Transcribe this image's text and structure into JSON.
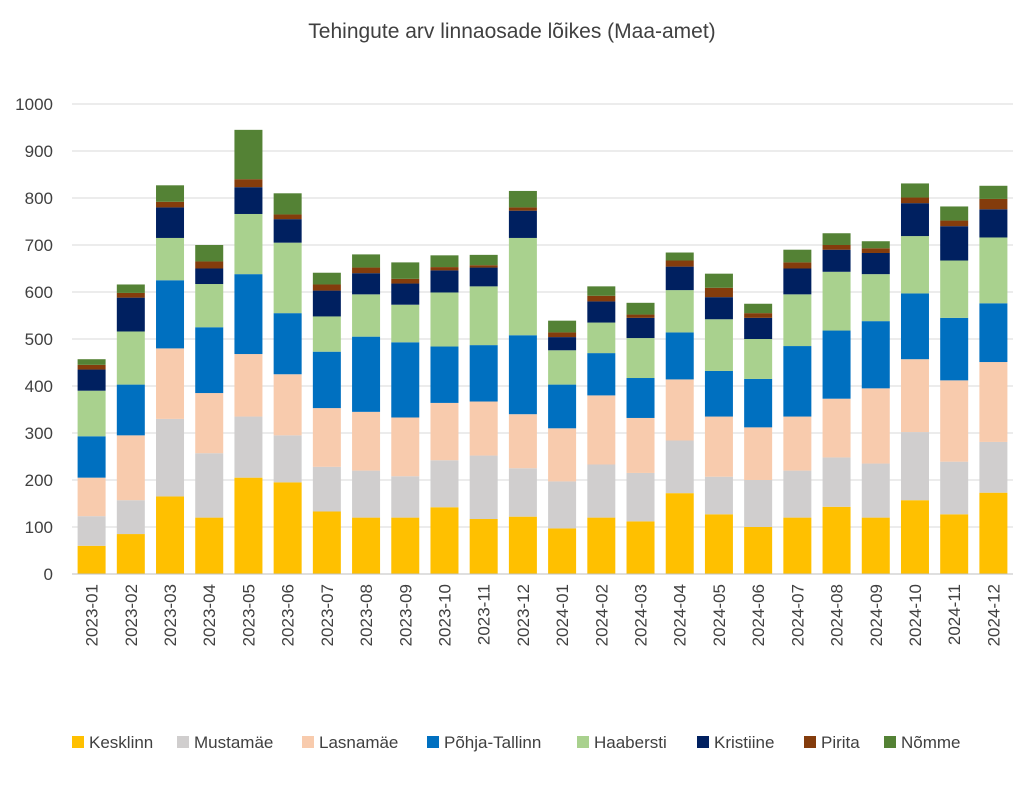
{
  "chart_data": {
    "type": "bar",
    "stacked": true,
    "title": "Tehingute arv linnaosade lõikes (Maa-amet)",
    "xlabel": "",
    "ylabel": "",
    "ylim": [
      0,
      1000
    ],
    "yticks": [
      0,
      100,
      200,
      300,
      400,
      500,
      600,
      700,
      800,
      900,
      1000
    ],
    "grid": true,
    "legend_position": "bottom",
    "categories": [
      "2023-01",
      "2023-02",
      "2023-03",
      "2023-04",
      "2023-05",
      "2023-06",
      "2023-07",
      "2023-08",
      "2023-09",
      "2023-10",
      "2023-11",
      "2023-12",
      "2024-01",
      "2024-02",
      "2024-03",
      "2024-04",
      "2024-05",
      "2024-06",
      "2024-07",
      "2024-08",
      "2024-09",
      "2024-10",
      "2024-11",
      "2024-12"
    ],
    "series": [
      {
        "name": "Kesklinn",
        "color": "#ffc000",
        "values": [
          60,
          85,
          165,
          120,
          205,
          195,
          133,
          120,
          120,
          142,
          117,
          122,
          97,
          120,
          112,
          172,
          127,
          100,
          120,
          143,
          120,
          157,
          127,
          173
        ]
      },
      {
        "name": "Mustamäe",
        "color": "#d0cece",
        "values": [
          63,
          72,
          165,
          137,
          130,
          100,
          95,
          100,
          88,
          100,
          135,
          103,
          100,
          113,
          103,
          112,
          80,
          100,
          100,
          105,
          115,
          145,
          112,
          108
        ]
      },
      {
        "name": "Lasnamäe",
        "color": "#f8cbad",
        "values": [
          82,
          138,
          150,
          128,
          133,
          130,
          125,
          125,
          125,
          122,
          115,
          115,
          113,
          147,
          117,
          130,
          128,
          112,
          115,
          125,
          160,
          155,
          173,
          170
        ]
      },
      {
        "name": "Põhja-Tallinn",
        "color": "#0070c0",
        "values": [
          88,
          108,
          145,
          140,
          170,
          130,
          120,
          160,
          160,
          120,
          120,
          168,
          93,
          90,
          85,
          100,
          97,
          103,
          150,
          145,
          143,
          140,
          133,
          125
        ]
      },
      {
        "name": "Haabersti",
        "color": "#a9d18e",
        "values": [
          97,
          113,
          90,
          92,
          128,
          150,
          75,
          90,
          80,
          115,
          125,
          207,
          73,
          65,
          85,
          90,
          110,
          85,
          110,
          125,
          100,
          122,
          122,
          140
        ]
      },
      {
        "name": "Kristiine",
        "color": "#002060",
        "values": [
          45,
          72,
          65,
          33,
          57,
          50,
          55,
          45,
          45,
          47,
          40,
          58,
          28,
          45,
          43,
          50,
          47,
          45,
          55,
          47,
          45,
          70,
          73,
          60
        ]
      },
      {
        "name": "Pirita",
        "color": "#843c0c",
        "values": [
          10,
          10,
          12,
          15,
          17,
          10,
          13,
          12,
          10,
          7,
          5,
          7,
          10,
          12,
          7,
          13,
          20,
          10,
          13,
          10,
          10,
          12,
          12,
          22
        ]
      },
      {
        "name": "Nõmme",
        "color": "#548235",
        "values": [
          12,
          18,
          35,
          35,
          105,
          45,
          25,
          28,
          35,
          25,
          22,
          35,
          25,
          20,
          25,
          17,
          30,
          20,
          27,
          25,
          15,
          30,
          30,
          28
        ]
      }
    ]
  }
}
